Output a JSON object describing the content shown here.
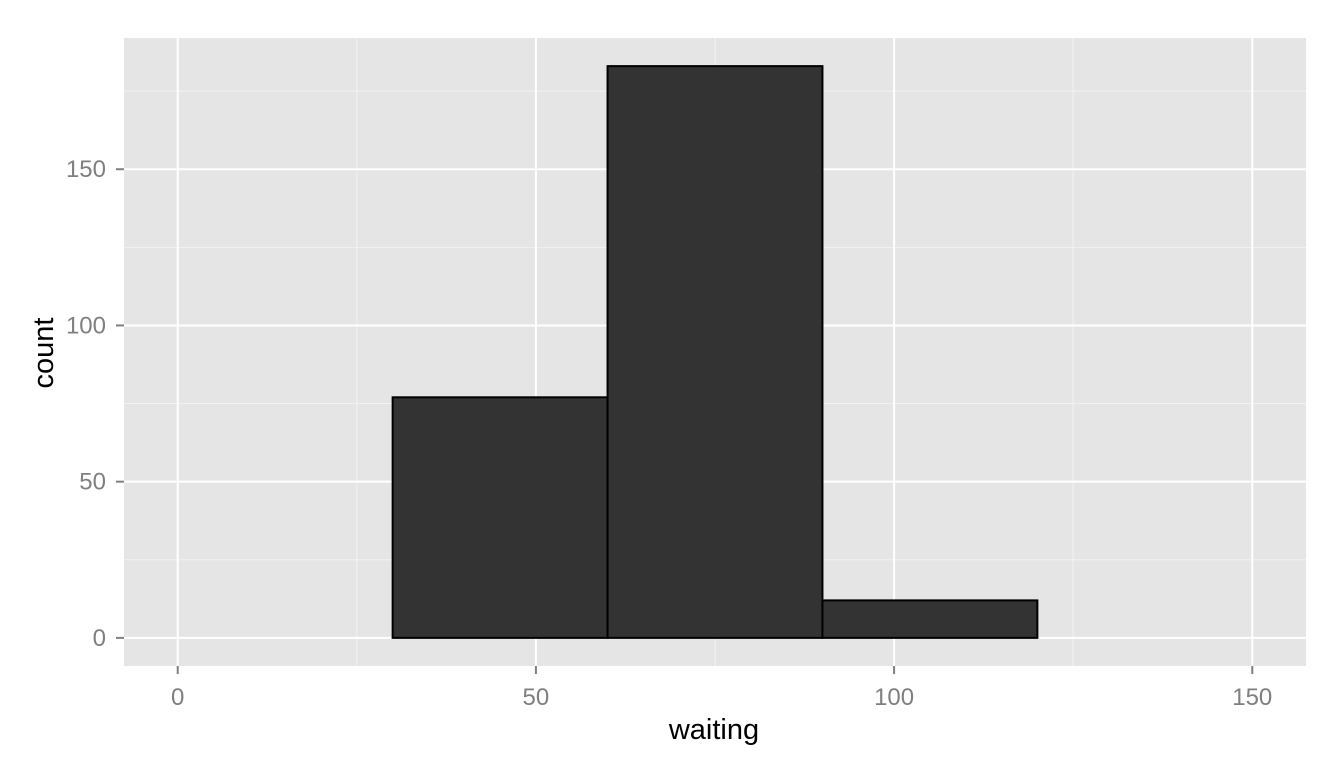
{
  "chart_data": {
    "type": "bar",
    "subtype": "histogram",
    "title": "",
    "xlabel": "waiting",
    "ylabel": "count",
    "bins": [
      {
        "x_start": 0,
        "x_end": 30,
        "count": 0
      },
      {
        "x_start": 30,
        "x_end": 60,
        "count": 77
      },
      {
        "x_start": 60,
        "x_end": 90,
        "count": 183
      },
      {
        "x_start": 90,
        "x_end": 120,
        "count": 12
      },
      {
        "x_start": 120,
        "x_end": 150,
        "count": 0
      }
    ],
    "xlim": [
      -7.5,
      157.5
    ],
    "ylim": [
      -9,
      192
    ],
    "x_ticks": [
      0,
      50,
      100,
      150
    ],
    "x_minor_ticks": [
      25,
      75,
      125
    ],
    "y_ticks": [
      0,
      50,
      100,
      150
    ],
    "y_minor_ticks": [
      25,
      75,
      125,
      175
    ],
    "x_tick_labels": [
      "0",
      "50",
      "100",
      "150"
    ],
    "y_tick_labels": [
      "0",
      "50",
      "100",
      "150"
    ],
    "grid": true,
    "legend": "none",
    "colors": {
      "panel_background": "#e5e5e5",
      "grid_major": "#ffffff",
      "grid_minor": "#f2f2f2",
      "bar_fill": "#333333",
      "bar_outline": "#000000",
      "tick_label": "#7f7f7f",
      "tick_mark": "#7f7f7f",
      "axis_title": "#000000"
    }
  }
}
